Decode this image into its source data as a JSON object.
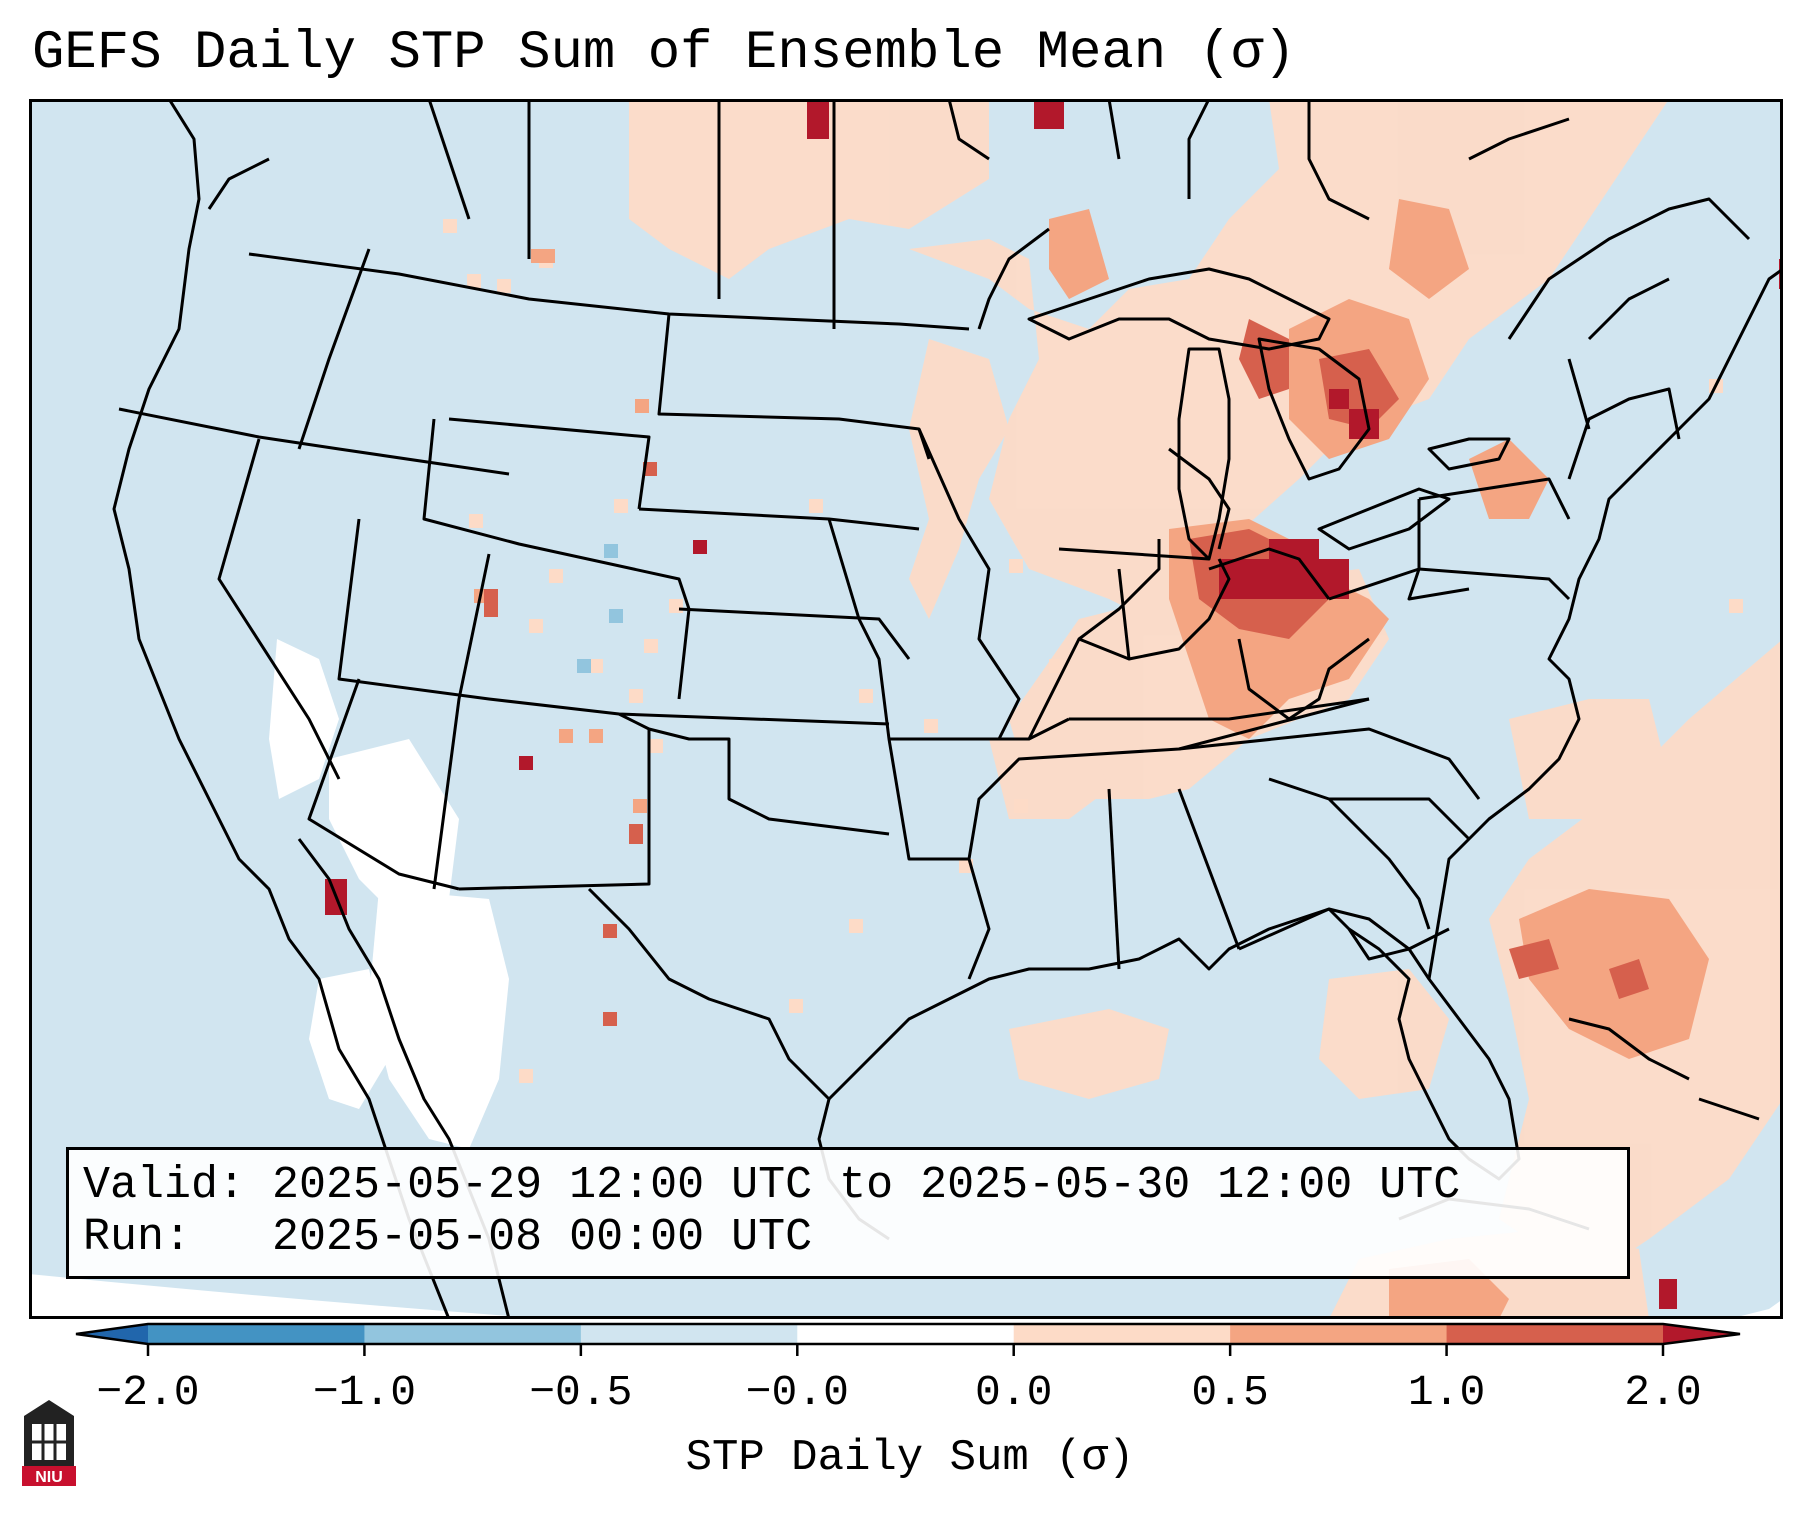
{
  "title": "GEFS Daily STP Sum of Ensemble Mean (σ)",
  "info": {
    "valid_label": "Valid:",
    "valid_value": "2025-05-29 12:00 UTC to 2025-05-30 12:00 UTC",
    "run_label": "Run:",
    "run_value": "2025-05-08 00:00 UTC"
  },
  "colorbar": {
    "label": "STP Daily Sum (σ)",
    "ticks": [
      "−2.0",
      "−1.0",
      "−0.5",
      "−0.0",
      "0.0",
      "0.5",
      "1.0",
      "2.0"
    ],
    "bins": [
      {
        "range": "< −2.0",
        "color": "#2166ac"
      },
      {
        "range": "−2.0 to −1.0",
        "color": "#4393c3"
      },
      {
        "range": "−1.0 to −0.5",
        "color": "#92c5de"
      },
      {
        "range": "−0.5 to −0.0",
        "color": "#d1e5f0"
      },
      {
        "range": "−0.0 to 0.0",
        "color": "#ffffff"
      },
      {
        "range": "0.0 to 0.5",
        "color": "#fddbc7"
      },
      {
        "range": "0.5 to 1.0",
        "color": "#f4a582"
      },
      {
        "range": "1.0 to 2.0",
        "color": "#d6604d"
      },
      {
        "range": "> 2.0",
        "color": "#b2182b"
      }
    ]
  },
  "logo": {
    "text": "NIU",
    "icon": "niu-logo-icon",
    "color": "#c8102e"
  },
  "map_colors": {
    "ocean": "#d1e5f0",
    "border": "#000000"
  }
}
